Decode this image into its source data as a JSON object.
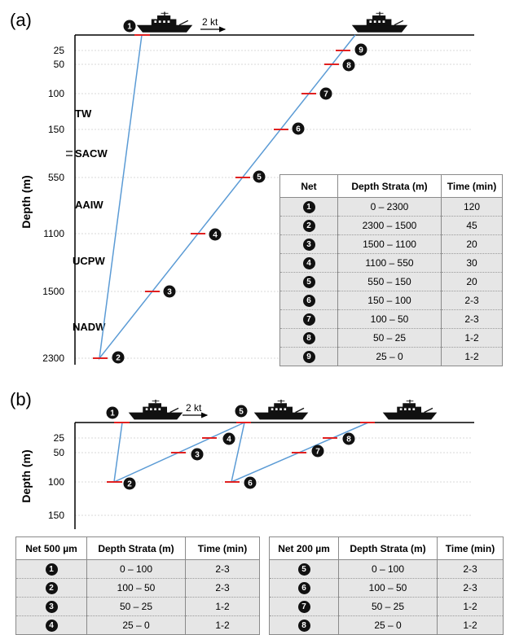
{
  "panel_a": {
    "label": "(a)",
    "speed": "2 kt",
    "ylabel": "Depth (m)",
    "ticks": [
      "25",
      "50",
      "100",
      "150",
      "550",
      "1100",
      "1500",
      "2300"
    ],
    "water_masses": [
      "TW",
      "SACW",
      "AAIW",
      "UCPW",
      "NADW"
    ],
    "nets": [
      "1",
      "2",
      "3",
      "4",
      "5",
      "6",
      "7",
      "8",
      "9"
    ],
    "table": {
      "headers": [
        "Net",
        "Depth Strata (m)",
        "Time (min)"
      ],
      "rows": [
        {
          "net": "1",
          "strata": "0 – 2300",
          "time": "120"
        },
        {
          "net": "2",
          "strata": "2300 – 1500",
          "time": "45"
        },
        {
          "net": "3",
          "strata": "1500 – 1100",
          "time": "20"
        },
        {
          "net": "4",
          "strata": "1100 – 550",
          "time": "30"
        },
        {
          "net": "5",
          "strata": "550 – 150",
          "time": "20"
        },
        {
          "net": "6",
          "strata": "150 – 100",
          "time": "2-3"
        },
        {
          "net": "7",
          "strata": "100 – 50",
          "time": "2-3"
        },
        {
          "net": "8",
          "strata": "50 – 25",
          "time": "1-2"
        },
        {
          "net": "9",
          "strata": "25 – 0",
          "time": "1-2"
        }
      ]
    }
  },
  "panel_b": {
    "label": "(b)",
    "speed": "2 kt",
    "ylabel": "Depth (m)",
    "ticks": [
      "25",
      "50",
      "100",
      "150"
    ],
    "nets": [
      "1",
      "2",
      "3",
      "4",
      "5",
      "6",
      "7",
      "8"
    ],
    "table_500": {
      "headers": [
        "Net 500 µm",
        "Depth Strata (m)",
        "Time (min)"
      ],
      "rows": [
        {
          "net": "1",
          "strata": "0 – 100",
          "time": "2-3"
        },
        {
          "net": "2",
          "strata": "100 – 50",
          "time": "2-3"
        },
        {
          "net": "3",
          "strata": "50 – 25",
          "time": "1-2"
        },
        {
          "net": "4",
          "strata": "25 – 0",
          "time": "1-2"
        }
      ]
    },
    "table_200": {
      "headers": [
        "Net 200 µm",
        "Depth Strata (m)",
        "Time (min)"
      ],
      "rows": [
        {
          "net": "5",
          "strata": "0 – 100",
          "time": "2-3"
        },
        {
          "net": "6",
          "strata": "100 – 50",
          "time": "2-3"
        },
        {
          "net": "7",
          "strata": "50 – 25",
          "time": "1-2"
        },
        {
          "net": "8",
          "strata": "25 – 0",
          "time": "1-2"
        }
      ]
    }
  },
  "colors": {
    "tow_line": "#5b9bd5",
    "net_marker": "#e02020",
    "row_fill": "#e6e6e6",
    "dark": "#111111"
  },
  "icons": {
    "ship": "ship-icon",
    "arrow": "arrow-right-icon"
  }
}
